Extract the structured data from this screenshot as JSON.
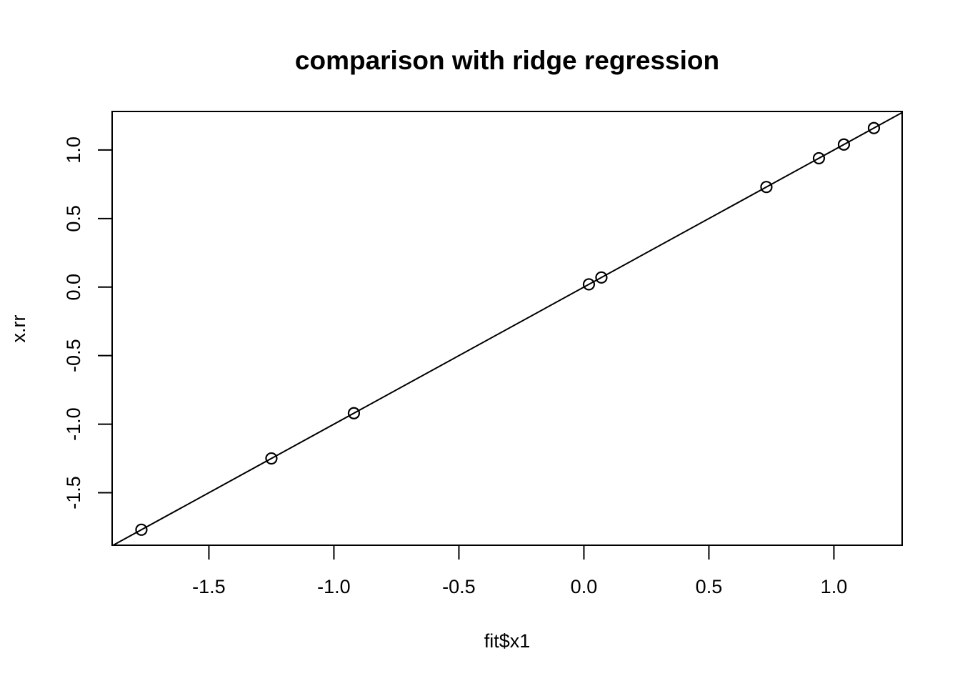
{
  "chart_data": {
    "type": "scatter",
    "title": "comparison with ridge regression",
    "xlabel": "fit$x1",
    "ylabel": "x.rr",
    "x": [
      -1.77,
      -1.25,
      -0.92,
      0.02,
      0.07,
      0.73,
      0.94,
      1.04,
      1.16
    ],
    "y": [
      -1.77,
      -1.25,
      -0.92,
      0.02,
      0.07,
      0.73,
      0.94,
      1.04,
      1.16
    ],
    "line": {
      "type": "abline",
      "intercept": 0,
      "slope": 1
    },
    "marker": "open-circle",
    "x_ticks": {
      "values": [
        -1.5,
        -1.0,
        -0.5,
        0.0,
        0.5,
        1.0
      ],
      "labels": [
        "-1.5",
        "-1.0",
        "-0.5",
        "0.0",
        "0.5",
        "1.0"
      ]
    },
    "y_ticks": {
      "values": [
        1.0,
        0.5,
        0.0,
        -0.5,
        -1.0,
        -1.5
      ],
      "labels": [
        "1.0",
        "0.5",
        "0.0",
        "-0.5",
        "-1.0",
        "-1.5"
      ]
    },
    "xlim": [
      -1.887,
      1.273
    ],
    "ylim": [
      -1.883,
      1.281
    ],
    "grid": false,
    "legend": null,
    "colors": {
      "foreground": "#000000",
      "background": "#ffffff"
    }
  }
}
